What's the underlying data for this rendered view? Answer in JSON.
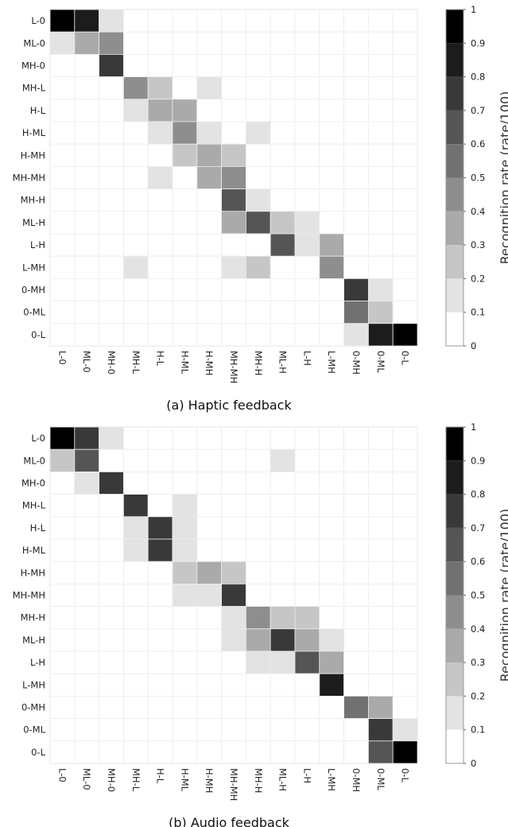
{
  "chart_data": [
    {
      "type": "heatmap",
      "title": "(a) Haptic feedback",
      "xlabel": "",
      "ylabel": "",
      "categories": [
        "L-0",
        "ML-0",
        "MH-0",
        "MH-L",
        "H-L",
        "H-ML",
        "H-MH",
        "MH-MH",
        "MH-H",
        "ML-H",
        "L-H",
        "L-MH",
        "0-MH",
        "0-ML",
        "0-L"
      ],
      "colorbar": {
        "label": "Recognition rate (rate/100)",
        "min": 0,
        "max": 1,
        "steps": 10,
        "ticks": [
          "0",
          "0.1",
          "0.2",
          "0.3",
          "0.4",
          "0.5",
          "0.6",
          "0.7",
          "0.8",
          "0.9",
          "1"
        ]
      },
      "grid": true,
      "values": [
        [
          1.0,
          0.85,
          0.1,
          0,
          0,
          0,
          0,
          0,
          0,
          0,
          0,
          0,
          0,
          0,
          0
        ],
        [
          0.1,
          0.3,
          0.4,
          0,
          0,
          0,
          0,
          0,
          0,
          0,
          0,
          0,
          0,
          0,
          0
        ],
        [
          0,
          0,
          0.7,
          0,
          0,
          0,
          0,
          0,
          0,
          0,
          0,
          0,
          0,
          0,
          0
        ],
        [
          0,
          0,
          0,
          0.45,
          0.25,
          0,
          0.1,
          0,
          0,
          0,
          0,
          0,
          0,
          0,
          0
        ],
        [
          0,
          0,
          0,
          0.15,
          0.3,
          0.3,
          0,
          0,
          0,
          0,
          0,
          0,
          0,
          0,
          0
        ],
        [
          0,
          0,
          0,
          0,
          0.15,
          0.45,
          0.1,
          0,
          0.1,
          0,
          0,
          0,
          0,
          0,
          0
        ],
        [
          0,
          0,
          0,
          0,
          0,
          0.25,
          0.3,
          0.25,
          0,
          0,
          0,
          0,
          0,
          0,
          0
        ],
        [
          0,
          0,
          0,
          0,
          0.1,
          0,
          0.3,
          0.4,
          0,
          0,
          0,
          0,
          0,
          0,
          0
        ],
        [
          0,
          0,
          0,
          0,
          0,
          0,
          0,
          0.6,
          0.15,
          0,
          0,
          0,
          0,
          0,
          0
        ],
        [
          0,
          0,
          0,
          0,
          0,
          0,
          0,
          0.3,
          0.6,
          0.25,
          0.1,
          0,
          0,
          0,
          0
        ],
        [
          0,
          0,
          0,
          0,
          0,
          0,
          0,
          0,
          0,
          0.6,
          0.1,
          0.35,
          0,
          0,
          0
        ],
        [
          0,
          0,
          0,
          0.1,
          0,
          0,
          0,
          0.1,
          0.2,
          0,
          0,
          0.4,
          0,
          0,
          0
        ],
        [
          0,
          0,
          0,
          0,
          0,
          0,
          0,
          0,
          0,
          0,
          0,
          0,
          0.7,
          0.1,
          0
        ],
        [
          0,
          0,
          0,
          0,
          0,
          0,
          0,
          0,
          0,
          0,
          0,
          0,
          0.5,
          0.25,
          0
        ],
        [
          0,
          0,
          0,
          0,
          0,
          0,
          0,
          0,
          0,
          0,
          0,
          0,
          0.1,
          0.85,
          0.95
        ]
      ]
    },
    {
      "type": "heatmap",
      "title": "(b) Audio feedback",
      "xlabel": "",
      "ylabel": "",
      "categories": [
        "L-0",
        "ML-0",
        "MH-0",
        "MH-L",
        "H-L",
        "H-ML",
        "H-MH",
        "MH-MH",
        "MH-H",
        "ML-H",
        "L-H",
        "L-MH",
        "0-MH",
        "0-ML",
        "0-L"
      ],
      "colorbar": {
        "label": "Recognition rate (rate/100)",
        "min": 0,
        "max": 1,
        "steps": 10,
        "ticks": [
          "0",
          "0.1",
          "0.2",
          "0.3",
          "0.4",
          "0.5",
          "0.6",
          "0.7",
          "0.8",
          "0.9",
          "1"
        ]
      },
      "grid": true,
      "values": [
        [
          1.0,
          0.75,
          0.1,
          0,
          0,
          0,
          0,
          0,
          0,
          0,
          0,
          0,
          0,
          0,
          0
        ],
        [
          0.2,
          0.6,
          0,
          0,
          0,
          0,
          0,
          0,
          0,
          0.1,
          0,
          0,
          0,
          0,
          0
        ],
        [
          0,
          0.1,
          0.75,
          0,
          0,
          0,
          0,
          0,
          0,
          0,
          0,
          0,
          0,
          0,
          0
        ],
        [
          0,
          0,
          0,
          0.75,
          0,
          0.1,
          0,
          0,
          0,
          0,
          0,
          0,
          0,
          0,
          0
        ],
        [
          0,
          0,
          0,
          0.1,
          0.7,
          0.1,
          0,
          0,
          0,
          0,
          0,
          0,
          0,
          0,
          0
        ],
        [
          0,
          0,
          0,
          0.1,
          0.7,
          0.1,
          0,
          0,
          0,
          0,
          0,
          0,
          0,
          0,
          0
        ],
        [
          0,
          0,
          0,
          0,
          0,
          0.2,
          0.35,
          0.25,
          0,
          0,
          0,
          0,
          0,
          0,
          0
        ],
        [
          0,
          0,
          0,
          0,
          0,
          0.1,
          0.1,
          0.7,
          0,
          0,
          0,
          0,
          0,
          0,
          0
        ],
        [
          0,
          0,
          0,
          0,
          0,
          0,
          0,
          0.1,
          0.45,
          0.2,
          0.2,
          0,
          0,
          0,
          0
        ],
        [
          0,
          0,
          0,
          0,
          0,
          0,
          0,
          0.1,
          0.3,
          0.75,
          0.3,
          0.1,
          0,
          0,
          0
        ],
        [
          0,
          0,
          0,
          0,
          0,
          0,
          0,
          0,
          0.1,
          0.1,
          0.6,
          0.35,
          0,
          0,
          0
        ],
        [
          0,
          0,
          0,
          0,
          0,
          0,
          0,
          0,
          0,
          0,
          0,
          0.85,
          0,
          0,
          0
        ],
        [
          0,
          0,
          0,
          0,
          0,
          0,
          0,
          0,
          0,
          0,
          0,
          0,
          0.5,
          0.35,
          0
        ],
        [
          0,
          0,
          0,
          0,
          0,
          0,
          0,
          0,
          0,
          0,
          0,
          0,
          0,
          0.75,
          0.1
        ],
        [
          0,
          0,
          0,
          0,
          0,
          0,
          0,
          0,
          0,
          0,
          0,
          0,
          0,
          0.6,
          0.95
        ]
      ]
    }
  ]
}
